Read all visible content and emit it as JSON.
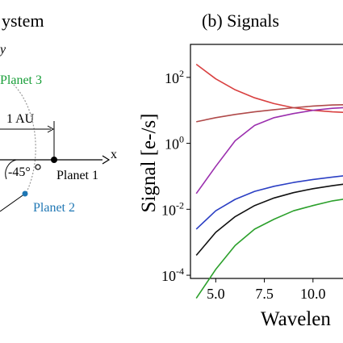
{
  "left_panel": {
    "title_fragment": "ystem",
    "arrow_fragment": "y",
    "planet3_label": "Planet 3",
    "planet1_label": "Planet 1",
    "planet2_label": "Planet 2",
    "distance_label": "1 AU",
    "angle_label": "-45°",
    "x_axis_label": "x",
    "colors": {
      "planet3": "#1a9f3a",
      "planet2": "#1f77b4"
    }
  },
  "chart_data": {
    "type": "line",
    "title": "(b) Signals",
    "ylabel": "Signal [e-/s]",
    "xlabel": "Wavelen",
    "yscale": "log",
    "xlim": [
      3.7,
      12.0
    ],
    "ylim": [
      8e-05,
      1000
    ],
    "x_ticks": [
      "5.0",
      "7.5",
      "10.0"
    ],
    "y_ticks": [
      {
        "base": "10",
        "exp": "2"
      },
      {
        "base": "10",
        "exp": "0"
      },
      {
        "base": "10",
        "exp": "-2"
      },
      {
        "base": "10",
        "exp": "-4"
      }
    ],
    "x": [
      4.0,
      5.0,
      6.0,
      7.0,
      8.0,
      9.0,
      10.0,
      11.0,
      12.0
    ],
    "series": [
      {
        "color": "#d94040",
        "values": [
          250,
          90,
          42,
          24,
          16,
          12,
          10,
          9,
          8.5
        ]
      },
      {
        "color": "#b04a4a",
        "values": [
          4.5,
          6,
          7.5,
          9,
          10.5,
          12,
          13.5,
          14.5,
          15
        ]
      },
      {
        "color": "#9b2fae",
        "values": [
          0.03,
          0.2,
          1.2,
          3.5,
          6,
          8,
          10,
          11.5,
          12.5
        ]
      },
      {
        "color": "#2b3fc4",
        "values": [
          0.0025,
          0.009,
          0.02,
          0.035,
          0.05,
          0.065,
          0.08,
          0.095,
          0.11
        ]
      },
      {
        "color": "#111111",
        "values": [
          0.0004,
          0.002,
          0.006,
          0.013,
          0.022,
          0.032,
          0.042,
          0.052,
          0.062
        ]
      },
      {
        "color": "#2ca02c",
        "values": [
          2e-05,
          0.00015,
          0.0008,
          0.0025,
          0.005,
          0.009,
          0.013,
          0.018,
          0.022
        ]
      }
    ]
  }
}
